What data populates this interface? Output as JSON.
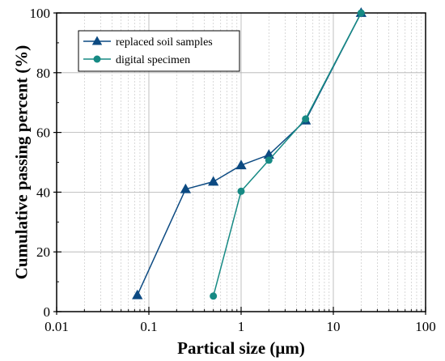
{
  "chart_data": {
    "type": "line",
    "xlabel": "Partical size (μm)",
    "ylabel": "Cumulative passing percent (%)",
    "xscale": "log",
    "xlim": [
      0.01,
      100
    ],
    "ylim": [
      0,
      100
    ],
    "xticks": [
      0.01,
      0.1,
      1,
      10,
      100
    ],
    "xtick_labels": [
      "0.01",
      "0.1",
      "1",
      "10",
      "100"
    ],
    "yticks": [
      0,
      20,
      40,
      60,
      80,
      100
    ],
    "ytick_labels": [
      "0",
      "20",
      "40",
      "60",
      "80",
      "100"
    ],
    "grid": "on",
    "legend": "top-left",
    "series": [
      {
        "name": "replaced soil samples",
        "marker": "triangle",
        "color": "#0c4a82",
        "x": [
          0.075,
          0.25,
          0.5,
          1,
          2,
          5,
          20
        ],
        "y": [
          5.5,
          41,
          43.5,
          49,
          52.5,
          64,
          100
        ]
      },
      {
        "name": "digital specimen",
        "marker": "circle",
        "color": "#168a84",
        "x": [
          0.5,
          1,
          2,
          5,
          20
        ],
        "y": [
          5.2,
          40.3,
          50.7,
          64.5,
          100
        ]
      }
    ]
  }
}
